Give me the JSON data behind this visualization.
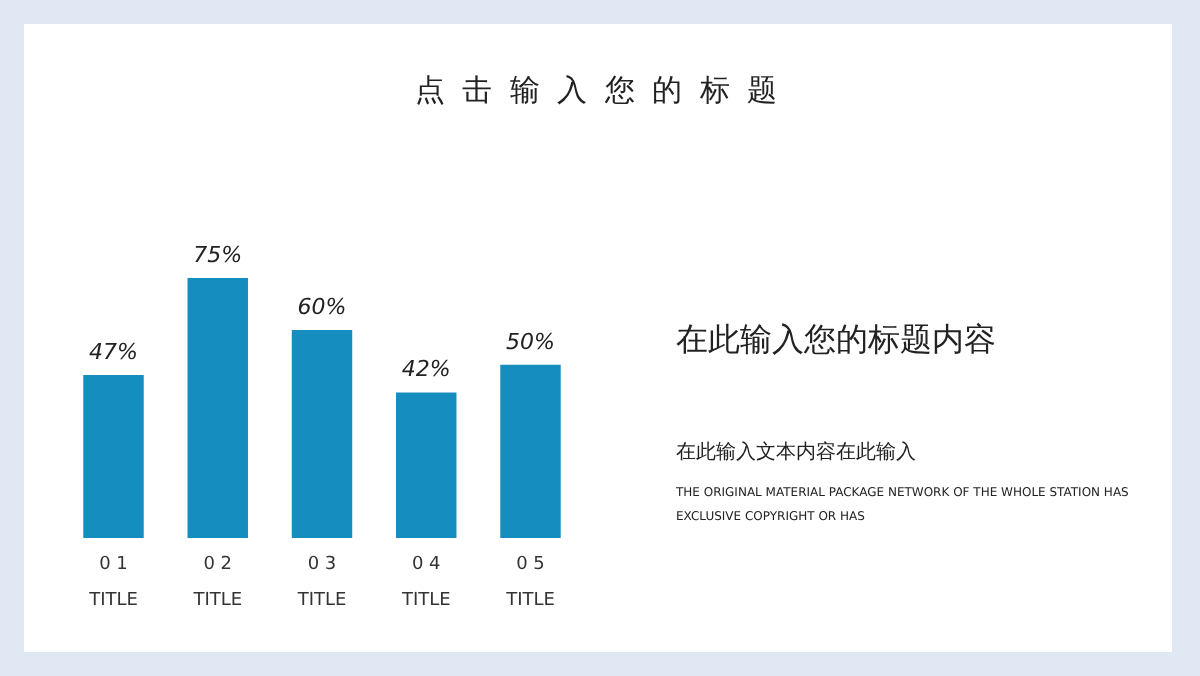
{
  "chart_data": {
    "type": "bar",
    "title": "点 击 输 入 您 的 标 题",
    "categories": [
      "0 1\nTITLE",
      "0 2\nTITLE",
      "0 3\nTITLE",
      "0 4\nTITLE",
      "0 5\nTITLE"
    ],
    "values": [
      47,
      75,
      60,
      42,
      50
    ],
    "value_labels": [
      "47%",
      "75%",
      "60%",
      "42%",
      "50%"
    ],
    "color": "#168dbf",
    "annotations": [
      "在此输入您的标题内容",
      "在此输入文本内容在此输入",
      "THE ORIGINAL MATERIAL PACKAGE NETWORK OF THE WHOLE STATION HAS EXCLUSIVE COPYRIGHT OR HAS"
    ]
  }
}
